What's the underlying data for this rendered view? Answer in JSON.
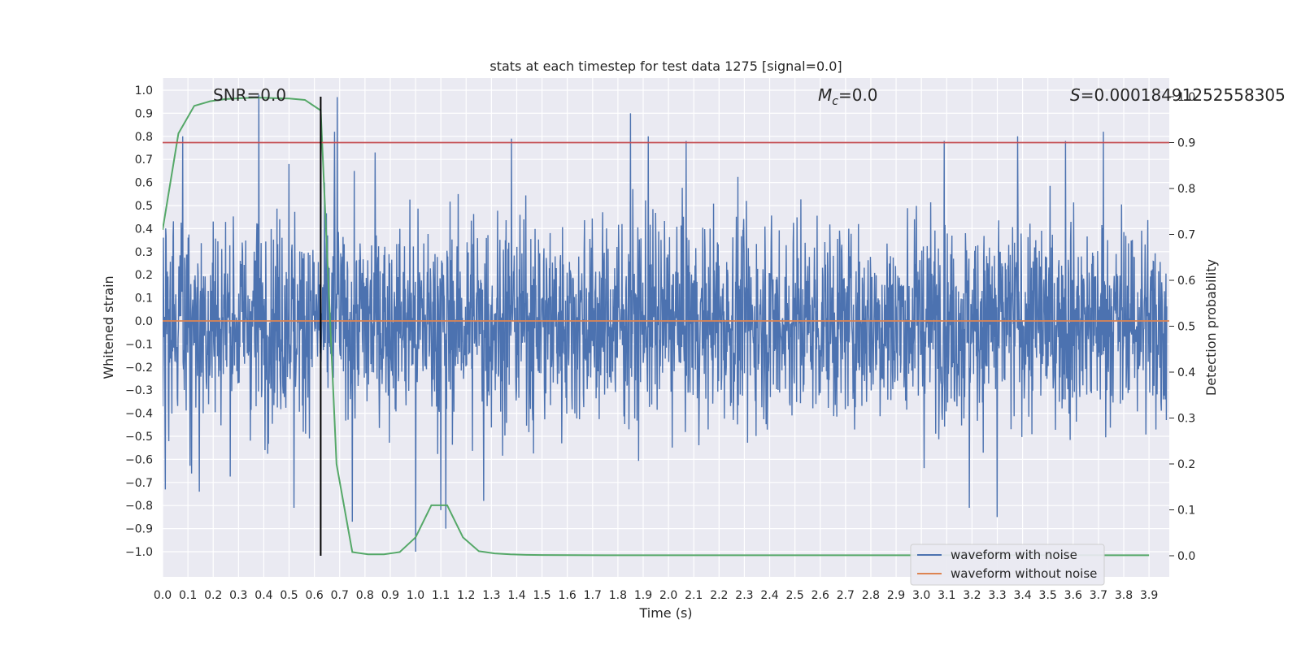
{
  "chart_data": {
    "type": "line",
    "title": "stats at each timestep for test data 1275 [signal=0.0]",
    "xlabel": "Time (s)",
    "ylabel": "Whitened strain",
    "y2label": "Detection probability",
    "xlim": [
      0.0,
      3.98
    ],
    "ylim": [
      -1.1,
      1.07
    ],
    "y2lim": [
      -0.05,
      1.04
    ],
    "xticks": [
      "0.0",
      "0.1",
      "0.2",
      "0.3",
      "0.4",
      "0.5",
      "0.6",
      "0.7",
      "0.8",
      "0.9",
      "1.0",
      "1.1",
      "1.2",
      "1.3",
      "1.4",
      "1.5",
      "1.6",
      "1.7",
      "1.8",
      "1.9",
      "2.0",
      "2.1",
      "2.2",
      "2.3",
      "2.4",
      "2.5",
      "2.6",
      "2.7",
      "2.8",
      "2.9",
      "3.0",
      "3.1",
      "3.2",
      "3.3",
      "3.4",
      "3.5",
      "3.6",
      "3.7",
      "3.8",
      "3.9"
    ],
    "yticks": [
      "1.0",
      "0.9",
      "0.8",
      "0.7",
      "0.6",
      "0.5",
      "0.4",
      "0.3",
      "0.2",
      "0.1",
      "0.0",
      "−0.1",
      "−0.2",
      "−0.3",
      "−0.4",
      "−0.5",
      "−0.6",
      "−0.7",
      "−0.8",
      "−0.9",
      "−1.0"
    ],
    "y2ticks": [
      "1.0",
      "0.9",
      "0.8",
      "0.7",
      "0.6",
      "0.5",
      "0.4",
      "0.3",
      "0.2",
      "0.1",
      "0.0"
    ],
    "grid": true,
    "legend_position": "lower-right",
    "annotations": {
      "snr": "SNR=0.0",
      "mc_symbol": "M",
      "mc_sub": "c",
      "mc_value": "=0.0",
      "s_symbol": "S",
      "s_value": "=0.00018491252558305"
    },
    "threshold": {
      "value": 0.9,
      "axis": "right",
      "color": "#c44e52"
    },
    "marker_time": 0.625,
    "series": [
      {
        "name": "waveform with noise",
        "color": "#4c72b0",
        "axis": "left",
        "t_start": 0.0,
        "t_end": 3.97,
        "amplitude": 0.3,
        "peaks": [
          [
            0.01,
            -0.73
          ],
          [
            0.08,
            0.8
          ],
          [
            0.145,
            -0.74
          ],
          [
            0.38,
            0.98
          ],
          [
            0.5,
            0.68
          ],
          [
            0.52,
            -0.81
          ],
          [
            0.68,
            0.82
          ],
          [
            0.69,
            0.97
          ],
          [
            0.75,
            -0.87
          ],
          [
            0.84,
            0.73
          ],
          [
            1.0,
            -1.0
          ],
          [
            1.1,
            -0.82
          ],
          [
            1.12,
            -0.9
          ],
          [
            1.27,
            -0.78
          ],
          [
            1.38,
            0.79
          ],
          [
            1.85,
            0.9
          ],
          [
            1.92,
            0.8
          ],
          [
            2.07,
            0.78
          ],
          [
            3.09,
            0.78
          ],
          [
            3.19,
            -0.81
          ],
          [
            3.3,
            -0.85
          ],
          [
            3.38,
            0.8
          ],
          [
            3.57,
            0.78
          ],
          [
            3.72,
            0.82
          ]
        ]
      },
      {
        "name": "waveform without noise",
        "color": "#dd8452",
        "axis": "left",
        "x": [
          0.0,
          3.98
        ],
        "y": [
          0.0,
          0.0
        ]
      },
      {
        "name": "Detection probability",
        "color": "#55a868",
        "axis": "right",
        "x": [
          0.0,
          0.0625,
          0.125,
          0.1875,
          0.25,
          0.3125,
          0.375,
          0.4375,
          0.5,
          0.5625,
          0.625,
          0.6875,
          0.75,
          0.8125,
          0.875,
          0.9375,
          1.0,
          1.0625,
          1.125,
          1.1875,
          1.25,
          1.3125,
          1.375,
          1.4375,
          1.5,
          1.75,
          2.0,
          2.5,
          3.0,
          3.5,
          3.9
        ],
        "y": [
          0.71,
          0.92,
          0.98,
          0.99,
          0.995,
          0.997,
          0.998,
          0.997,
          0.996,
          0.993,
          0.97,
          0.2,
          0.008,
          0.003,
          0.003,
          0.008,
          0.04,
          0.11,
          0.11,
          0.04,
          0.01,
          0.005,
          0.003,
          0.002,
          0.0015,
          0.001,
          0.001,
          0.001,
          0.001,
          0.001,
          0.001
        ]
      }
    ]
  }
}
